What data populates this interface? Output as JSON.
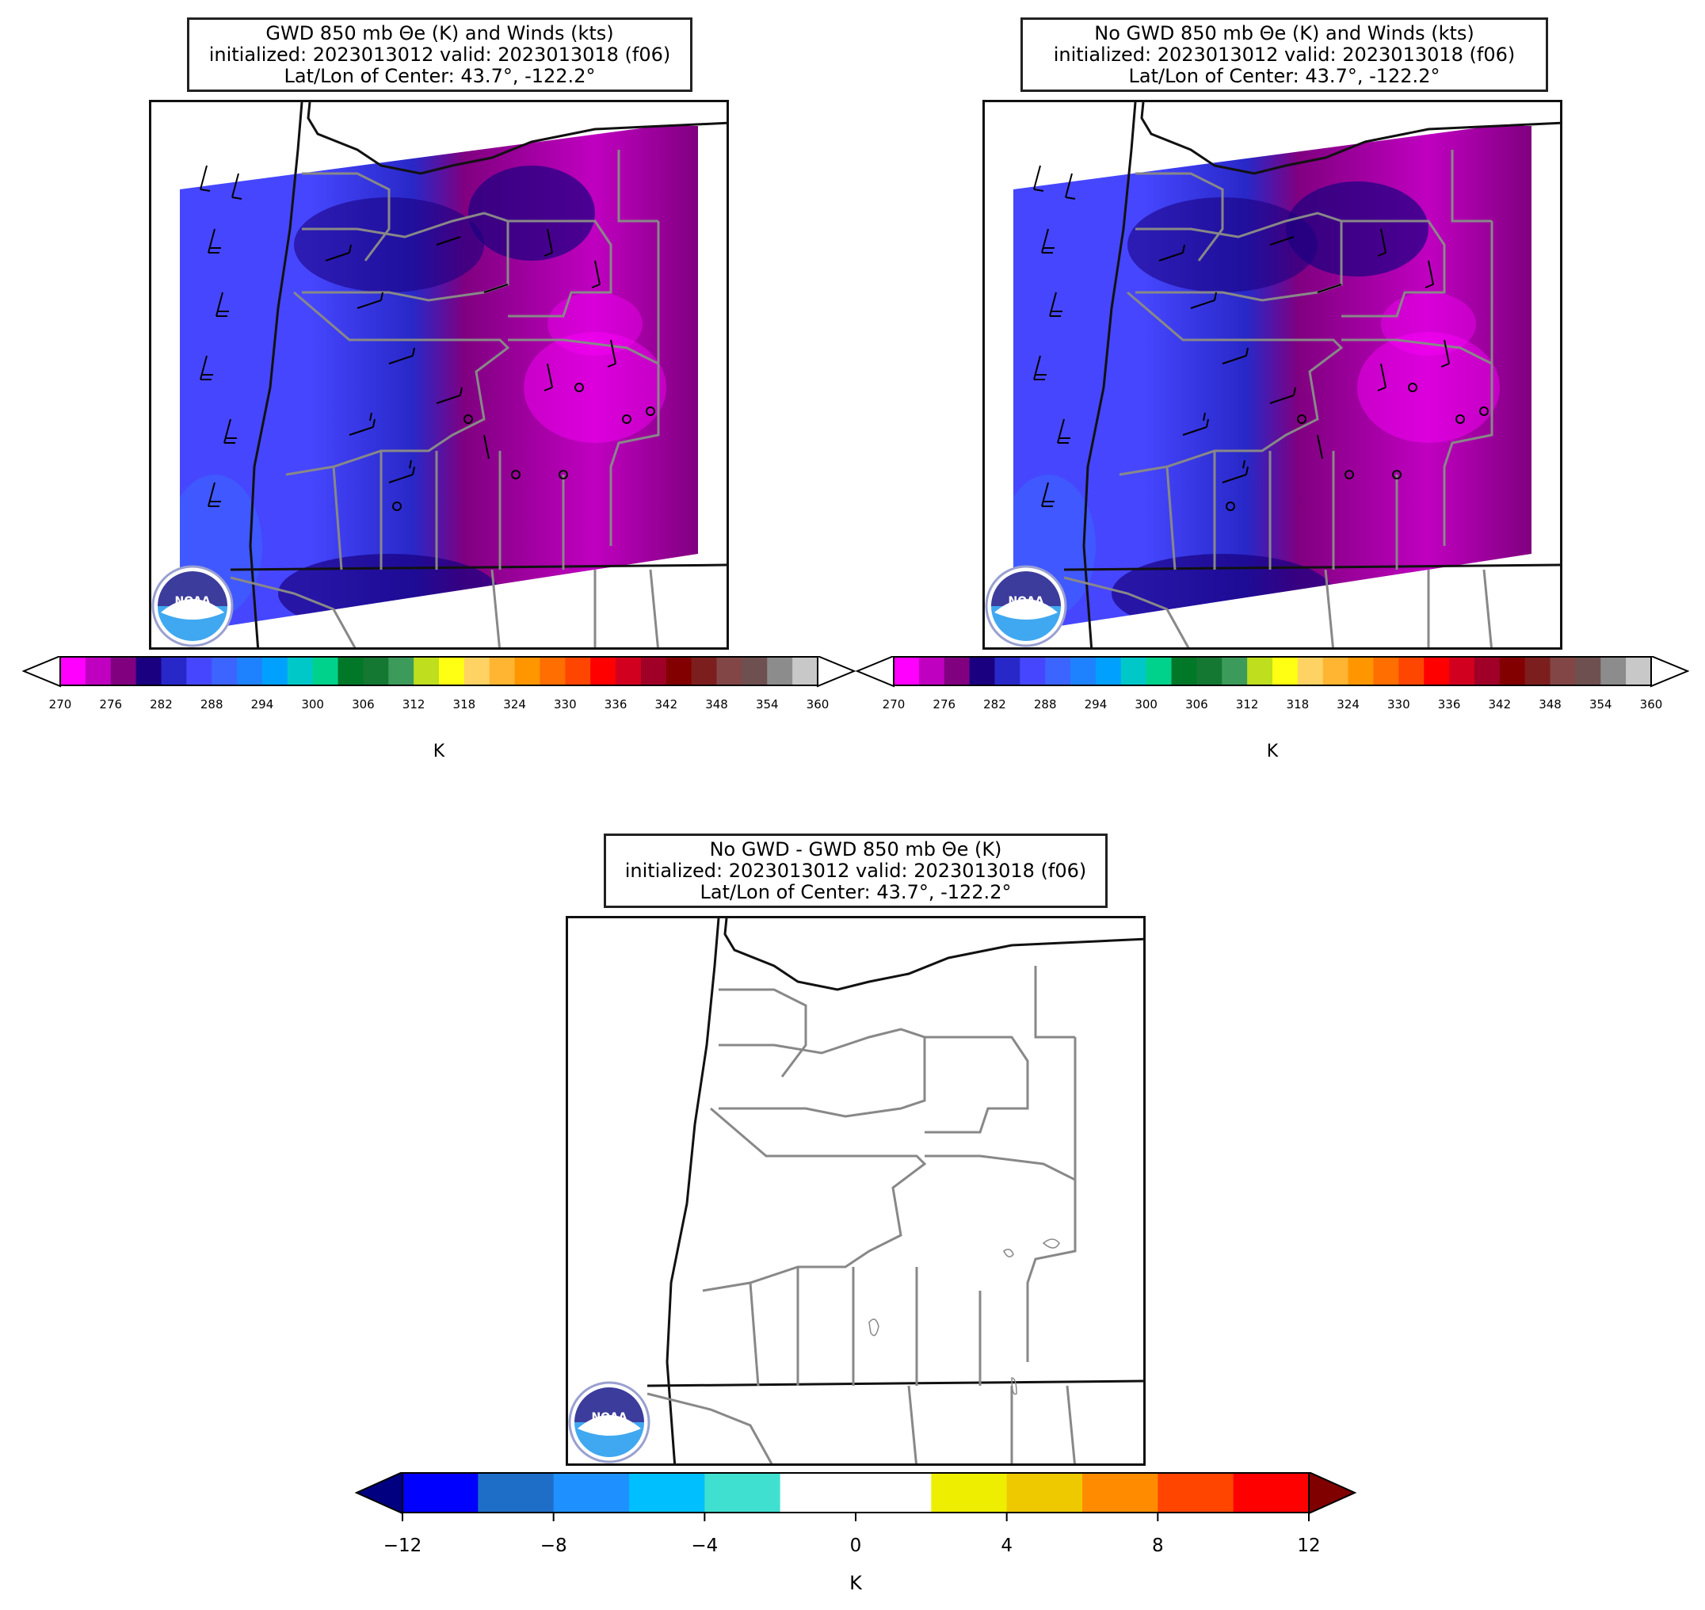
{
  "panels": [
    {
      "title_lines": [
        "GWD 850 mb Θe (K) and Winds (kts)",
        "initialized: 2023013012 valid: 2023013018 (f06)",
        "Lat/Lon of Center: 43.7°, -122.2°"
      ],
      "colorbar_label": "K"
    },
    {
      "title_lines": [
        "No GWD 850 mb Θe (K) and Winds (kts)",
        "initialized: 2023013012 valid: 2023013018 (f06)",
        "Lat/Lon of Center: 43.7°, -122.2°"
      ],
      "colorbar_label": "K"
    },
    {
      "title_lines": [
        "No GWD - GWD 850 mb Θe (K)",
        "initialized: 2023013012 valid: 2023013018 (f06)",
        "Lat/Lon of Center: 43.7°, -122.2°"
      ],
      "colorbar_label": "K"
    }
  ],
  "theta_colorbar": {
    "ticks": [
      "270",
      "276",
      "282",
      "288",
      "294",
      "300",
      "306",
      "312",
      "318",
      "324",
      "330",
      "336",
      "342",
      "348",
      "354",
      "360"
    ],
    "colors": [
      "#ff00ff",
      "#c000c0",
      "#800080",
      "#1a0080",
      "#2828c8",
      "#4646ff",
      "#3c64ff",
      "#1e82ff",
      "#00a0ff",
      "#00c8c8",
      "#00d28c",
      "#007828",
      "#147832",
      "#3c9b5a",
      "#bede1e",
      "#ffff14",
      "#ffd264",
      "#ffb432",
      "#ff9600",
      "#ff6e00",
      "#ff4600",
      "#ff0000",
      "#d2001e",
      "#a00028",
      "#820000",
      "#7d1e1e",
      "#824646",
      "#6e5050",
      "#8c8c8c",
      "#c8c8c8"
    ]
  },
  "diff_colorbar": {
    "ticks": [
      "−12",
      "−8",
      "−4",
      "0",
      "4",
      "8",
      "12"
    ],
    "colors": [
      "#0000ff",
      "#1e6ec8",
      "#1e90ff",
      "#00bfff",
      "#40e0d0",
      "#ffffff",
      "#ffffff",
      "#eeee00",
      "#eec900",
      "#ff8c00",
      "#ff4500",
      "#ff0000"
    ],
    "under_color": "#000080",
    "over_color": "#800000"
  },
  "logo": {
    "text": "NOAA"
  }
}
